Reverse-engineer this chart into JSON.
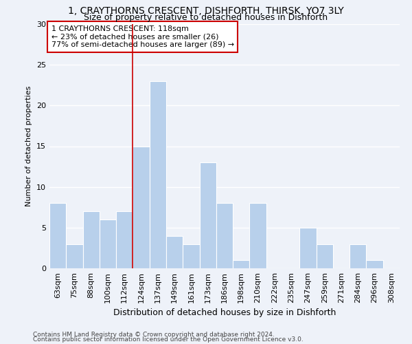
{
  "title_line1": "1, CRAYTHORNS CRESCENT, DISHFORTH, THIRSK, YO7 3LY",
  "title_line2": "Size of property relative to detached houses in Dishforth",
  "xlabel": "Distribution of detached houses by size in Dishforth",
  "ylabel": "Number of detached properties",
  "categories": [
    "63sqm",
    "75sqm",
    "88sqm",
    "100sqm",
    "112sqm",
    "124sqm",
    "137sqm",
    "149sqm",
    "161sqm",
    "173sqm",
    "186sqm",
    "198sqm",
    "210sqm",
    "222sqm",
    "235sqm",
    "247sqm",
    "259sqm",
    "271sqm",
    "284sqm",
    "296sqm",
    "308sqm"
  ],
  "values": [
    8,
    3,
    7,
    6,
    7,
    15,
    23,
    4,
    3,
    13,
    8,
    1,
    8,
    0,
    0,
    5,
    3,
    0,
    3,
    1,
    0
  ],
  "bar_color": "#b8d0eb",
  "bar_edge_color": "#b8d0eb",
  "vline_x_index": 5,
  "annotation_line1": "1 CRAYTHORNS CRESCENT: 118sqm",
  "annotation_line2": "← 23% of detached houses are smaller (26)",
  "annotation_line3": "77% of semi-detached houses are larger (89) →",
  "annotation_box_color": "#ffffff",
  "annotation_border_color": "#cc0000",
  "vline_color": "#cc0000",
  "ylim": [
    0,
    30
  ],
  "yticks": [
    0,
    5,
    10,
    15,
    20,
    25,
    30
  ],
  "footnote1": "Contains HM Land Registry data © Crown copyright and database right 2024.",
  "footnote2": "Contains public sector information licensed under the Open Government Licence v3.0.",
  "bg_color": "#eef2f9",
  "grid_color": "#ffffff",
  "title1_fontsize": 10,
  "title2_fontsize": 9,
  "ylabel_fontsize": 8,
  "xlabel_fontsize": 9,
  "tick_fontsize": 8,
  "annot_fontsize": 8,
  "footnote_fontsize": 6.5
}
